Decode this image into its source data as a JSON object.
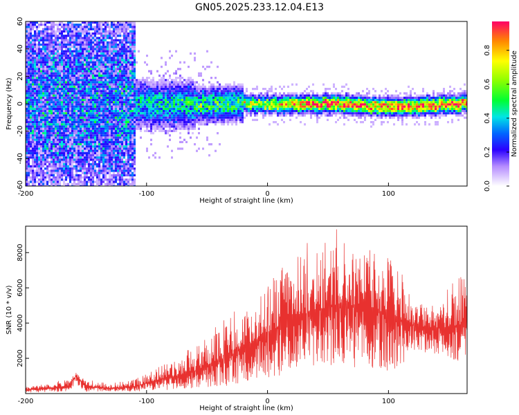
{
  "figure": {
    "title": "GN05.2025.233.12.04.E13"
  },
  "chart_data": [
    {
      "type": "heatmap",
      "xlabel": "Height of straight line (km)",
      "ylabel": "Frequency (Hz)",
      "xlim": [
        -200,
        165
      ],
      "ylim": [
        -60,
        60
      ],
      "xticks": [
        -200,
        -100,
        0,
        100
      ],
      "yticks": [
        -60,
        -40,
        -20,
        0,
        20,
        40,
        60
      ],
      "grid": false,
      "description_series": [
        {
          "x": [
            -200,
            -150,
            -100,
            -50,
            -20,
            0,
            50,
            100,
            165
          ],
          "y": [
            0,
            0,
            0,
            0,
            1,
            0,
            1,
            -2,
            1
          ]
        }
      ],
      "colorbar": {
        "label": "Normalized spectral amplitude",
        "range": [
          0.0,
          0.97
        ],
        "ticks": [
          0.0,
          0.2,
          0.4,
          0.6,
          0.8
        ],
        "tick_labels": [
          "0.0",
          "0.2",
          "0.4",
          "0.6",
          "0.8"
        ]
      }
    },
    {
      "type": "line",
      "xlabel": "Height of straight line (km)",
      "ylabel": "SNR (10 * v/v)",
      "xlim": [
        -200,
        165
      ],
      "ylim": [
        0,
        9500
      ],
      "xticks": [
        -200,
        -100,
        0,
        100
      ],
      "yticks": [
        2000,
        4000,
        6000,
        8000
      ],
      "grid": false,
      "series": [
        {
          "color": "#e8312f",
          "x": [
            -200,
            -180,
            -165,
            -158,
            -150,
            -130,
            -110,
            -100,
            -90,
            -80,
            -70,
            -60,
            -50,
            -40,
            -30,
            -20,
            -10,
            0,
            10,
            20,
            30,
            40,
            50,
            60,
            70,
            80,
            90,
            100,
            110,
            120,
            130,
            140,
            150,
            160,
            165
          ],
          "y": [
            200,
            300,
            450,
            1000,
            400,
            300,
            400,
            600,
            800,
            900,
            1100,
            1300,
            1600,
            1900,
            2200,
            2600,
            3000,
            3400,
            3800,
            4200,
            4500,
            4700,
            4900,
            5100,
            5000,
            4800,
            4700,
            4500,
            4200,
            3900,
            3700,
            3700,
            3800,
            3900,
            3700
          ],
          "upper": [
            400,
            550,
            800,
            1200,
            700,
            600,
            800,
            1200,
            1500,
            1900,
            2300,
            2800,
            3200,
            3600,
            4100,
            4700,
            5200,
            6000,
            7200,
            7600,
            8000,
            8200,
            8400,
            8700,
            8600,
            8300,
            8100,
            7800,
            7000,
            5400,
            5000,
            5200,
            6000,
            6900,
            6500
          ],
          "lower": [
            50,
            80,
            120,
            500,
            100,
            100,
            100,
            150,
            200,
            200,
            250,
            300,
            350,
            400,
            450,
            500,
            700,
            800,
            900,
            1000,
            1200,
            1400,
            1500,
            1600,
            1500,
            1400,
            1300,
            1200,
            1500,
            2400,
            2300,
            2200,
            2000,
            1800,
            1700
          ]
        }
      ]
    }
  ]
}
